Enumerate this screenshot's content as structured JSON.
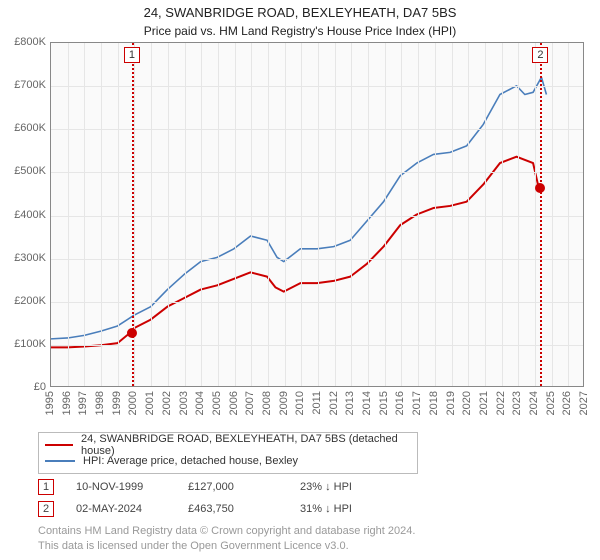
{
  "title": "24, SWANBRIDGE ROAD, BEXLEYHEATH, DA7 5BS",
  "subtitle": "Price paid vs. HM Land Registry's House Price Index (HPI)",
  "chart": {
    "type": "line",
    "background_color": "#fafafa",
    "grid_color": "#e6e6e6",
    "border_color": "#888888",
    "y": {
      "min": 0,
      "max": 800000,
      "step": 100000,
      "labels": [
        "£0",
        "£100K",
        "£200K",
        "£300K",
        "£400K",
        "£500K",
        "£600K",
        "£700K",
        "£800K"
      ]
    },
    "x": {
      "min": 1995,
      "max": 2027,
      "step": 1,
      "labels": [
        "1995",
        "1996",
        "1997",
        "1998",
        "1999",
        "2000",
        "2001",
        "2002",
        "2003",
        "2004",
        "2005",
        "2006",
        "2007",
        "2008",
        "2009",
        "2010",
        "2011",
        "2012",
        "2013",
        "2014",
        "2015",
        "2016",
        "2017",
        "2018",
        "2019",
        "2020",
        "2021",
        "2022",
        "2023",
        "2024",
        "2025",
        "2026",
        "2027"
      ]
    },
    "series": [
      {
        "id": "price_paid",
        "label": "24, SWANBRIDGE ROAD, BEXLEYHEATH, DA7 5BS (detached house)",
        "color": "#cc0000",
        "line_width": 2,
        "points": [
          [
            1995,
            90000
          ],
          [
            1996,
            90000
          ],
          [
            1997,
            92000
          ],
          [
            1998,
            95000
          ],
          [
            1999,
            100000
          ],
          [
            1999.85,
            127000
          ],
          [
            2000,
            135000
          ],
          [
            2001,
            155000
          ],
          [
            2002,
            185000
          ],
          [
            2003,
            205000
          ],
          [
            2004,
            225000
          ],
          [
            2005,
            235000
          ],
          [
            2006,
            250000
          ],
          [
            2007,
            265000
          ],
          [
            2008,
            255000
          ],
          [
            2008.5,
            230000
          ],
          [
            2009,
            220000
          ],
          [
            2010,
            240000
          ],
          [
            2011,
            240000
          ],
          [
            2012,
            245000
          ],
          [
            2013,
            255000
          ],
          [
            2014,
            285000
          ],
          [
            2015,
            325000
          ],
          [
            2016,
            375000
          ],
          [
            2017,
            400000
          ],
          [
            2018,
            415000
          ],
          [
            2019,
            420000
          ],
          [
            2020,
            430000
          ],
          [
            2021,
            470000
          ],
          [
            2022,
            520000
          ],
          [
            2023,
            535000
          ],
          [
            2024,
            520000
          ],
          [
            2024.33,
            463750
          ]
        ]
      },
      {
        "id": "hpi",
        "label": "HPI: Average price, detached house, Bexley",
        "color": "#4a7ebb",
        "line_width": 1.6,
        "points": [
          [
            1995,
            110000
          ],
          [
            1996,
            112000
          ],
          [
            1997,
            118000
          ],
          [
            1998,
            128000
          ],
          [
            1999,
            140000
          ],
          [
            2000,
            165000
          ],
          [
            2001,
            185000
          ],
          [
            2002,
            225000
          ],
          [
            2003,
            260000
          ],
          [
            2004,
            290000
          ],
          [
            2005,
            300000
          ],
          [
            2006,
            320000
          ],
          [
            2007,
            350000
          ],
          [
            2008,
            340000
          ],
          [
            2008.6,
            300000
          ],
          [
            2009,
            290000
          ],
          [
            2010,
            320000
          ],
          [
            2011,
            320000
          ],
          [
            2012,
            325000
          ],
          [
            2013,
            340000
          ],
          [
            2014,
            385000
          ],
          [
            2015,
            430000
          ],
          [
            2016,
            490000
          ],
          [
            2017,
            520000
          ],
          [
            2018,
            540000
          ],
          [
            2019,
            545000
          ],
          [
            2020,
            560000
          ],
          [
            2021,
            610000
          ],
          [
            2022,
            680000
          ],
          [
            2023,
            700000
          ],
          [
            2023.5,
            680000
          ],
          [
            2024,
            685000
          ],
          [
            2024.5,
            720000
          ],
          [
            2024.8,
            680000
          ]
        ]
      }
    ],
    "markers": [
      {
        "id": 1,
        "label": "1",
        "x": 1999.85,
        "color": "#cc0000",
        "point_y": 127000
      },
      {
        "id": 2,
        "label": "2",
        "x": 2024.33,
        "color": "#cc0000",
        "point_y": 463750
      }
    ]
  },
  "legend": [
    {
      "color": "#cc0000",
      "label": "24, SWANBRIDGE ROAD, BEXLEYHEATH, DA7 5BS (detached house)"
    },
    {
      "color": "#4a7ebb",
      "label": "HPI: Average price, detached house, Bexley"
    }
  ],
  "datapoints": [
    {
      "num": "1",
      "color": "#cc0000",
      "date": "10-NOV-1999",
      "price": "£127,000",
      "delta": "23% ↓ HPI"
    },
    {
      "num": "2",
      "color": "#cc0000",
      "date": "02-MAY-2024",
      "price": "£463,750",
      "delta": "31% ↓ HPI"
    }
  ],
  "footer": {
    "line1": "Contains HM Land Registry data © Crown copyright and database right 2024.",
    "line2": "This data is licensed under the Open Government Licence v3.0."
  }
}
